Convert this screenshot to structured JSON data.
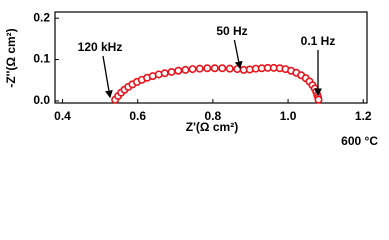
{
  "chart_data": {
    "type": "scatter",
    "xlabel": "Z'(Ω cm²)",
    "ylabel": "-Z''(Ω cm²)",
    "x": [
      0.54,
      0.548,
      0.556,
      0.565,
      0.575,
      0.586,
      0.598,
      0.611,
      0.625,
      0.64,
      0.656,
      0.672,
      0.69,
      0.708,
      0.727,
      0.746,
      0.765,
      0.785,
      0.805,
      0.825,
      0.845,
      0.865,
      0.882,
      0.898,
      0.914,
      0.93,
      0.946,
      0.962,
      0.978,
      0.993,
      1.008,
      1.022,
      1.035,
      1.047,
      1.057,
      1.065,
      1.071,
      1.075,
      1.078,
      1.08,
      1.081
    ],
    "values": [
      0.003,
      0.012,
      0.02,
      0.027,
      0.034,
      0.04,
      0.046,
      0.051,
      0.056,
      0.06,
      0.064,
      0.067,
      0.07,
      0.073,
      0.075,
      0.077,
      0.078,
      0.079,
      0.079,
      0.079,
      0.078,
      0.077,
      0.075,
      0.076,
      0.078,
      0.079,
      0.08,
      0.08,
      0.079,
      0.077,
      0.073,
      0.068,
      0.062,
      0.055,
      0.047,
      0.038,
      0.03,
      0.022,
      0.014,
      0.008,
      0.003
    ],
    "color": "#e8141c",
    "xlim": [
      0.38,
      1.21
    ],
    "xticks": [
      {
        "value": 0.4,
        "label": "0.4"
      },
      {
        "value": 0.6,
        "label": "0.6"
      },
      {
        "value": 0.8,
        "label": "0.8"
      },
      {
        "value": 1.0,
        "label": "1.0"
      },
      {
        "value": 1.2,
        "label": "1.2"
      }
    ],
    "ylim": [
      -0.005,
      0.215
    ],
    "yticks": [
      {
        "value": 0.0,
        "label": "0.0"
      },
      {
        "value": 0.1,
        "label": "0.1"
      },
      {
        "value": 0.2,
        "label": "0.2"
      }
    ],
    "annotations": [
      "120 kHz",
      "50 Hz",
      "0.1 Hz"
    ],
    "condition": "600 °C"
  }
}
